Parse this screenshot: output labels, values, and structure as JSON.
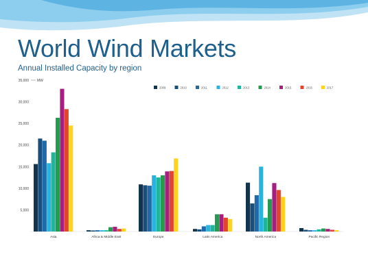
{
  "slide": {
    "title": "World Wind Markets",
    "subtitle": "Annual Installed Capacity by region"
  },
  "colors": {
    "title": "#1f5f8b",
    "background": "#ffffff",
    "wave_light": "#bfe3f5",
    "wave_mid": "#8dcdee",
    "wave_dark": "#5db4e2"
  },
  "chart_data": {
    "type": "bar",
    "title": "",
    "xlabel": "",
    "ylabel": "MW",
    "ylim": [
      0,
      35000
    ],
    "yticks": [
      5000,
      10000,
      15000,
      20000,
      25000,
      30000,
      35000
    ],
    "ytick_labels": [
      "5,000",
      "10,000",
      "15,000",
      "20,000",
      "25,000",
      "30,000",
      "35,000"
    ],
    "grid": false,
    "legend_position": "top-right",
    "categories": [
      "Asia",
      "Africa & Middle East",
      "Europe",
      "Latin America",
      "North America",
      "Pacific Region"
    ],
    "series": [
      {
        "name": "2009",
        "color": "#12344d",
        "values": [
          15600,
          300,
          10900,
          600,
          11300,
          800
        ]
      },
      {
        "name": "2010",
        "color": "#1a4f7c",
        "values": [
          21500,
          250,
          10700,
          500,
          6500,
          400
        ]
      },
      {
        "name": "2011",
        "color": "#2169a8",
        "values": [
          21000,
          300,
          10600,
          1200,
          8400,
          300
        ]
      },
      {
        "name": "2012",
        "color": "#2ab3dd",
        "values": [
          15800,
          300,
          13000,
          1500,
          15000,
          300
        ]
      },
      {
        "name": "2013",
        "color": "#1fb59a",
        "values": [
          18300,
          300,
          12500,
          1500,
          3200,
          500
        ]
      },
      {
        "name": "2014",
        "color": "#249b4e",
        "values": [
          26300,
          1000,
          13000,
          4000,
          7500,
          700
        ]
      },
      {
        "name": "2015",
        "color": "#a61e7f",
        "values": [
          33000,
          1100,
          13900,
          4000,
          11200,
          600
        ]
      },
      {
        "name": "2016",
        "color": "#e2442e",
        "values": [
          28300,
          600,
          14000,
          3200,
          9600,
          400
        ]
      },
      {
        "name": "2017",
        "color": "#ffd21f",
        "values": [
          24500,
          700,
          16900,
          2900,
          8000,
          300
        ]
      }
    ]
  }
}
